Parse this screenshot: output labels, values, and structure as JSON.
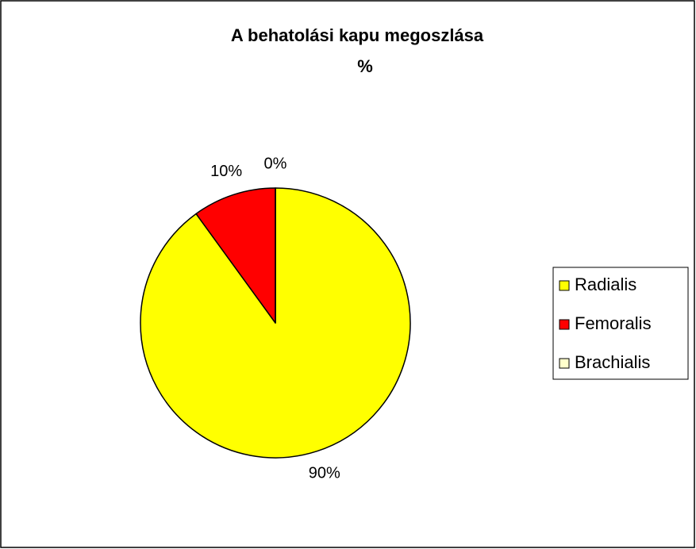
{
  "chart_data": {
    "type": "pie",
    "title": "A behatolási kapu megoszlása",
    "subtitle": "%",
    "categories": [
      "Radialis",
      "Femoralis",
      "Brachialis"
    ],
    "values": [
      90,
      10,
      0
    ],
    "value_labels": [
      "90%",
      "10%",
      "0%"
    ],
    "colors": [
      "#ffff00",
      "#ff0000",
      "#ffffcc"
    ],
    "legend": "right"
  }
}
